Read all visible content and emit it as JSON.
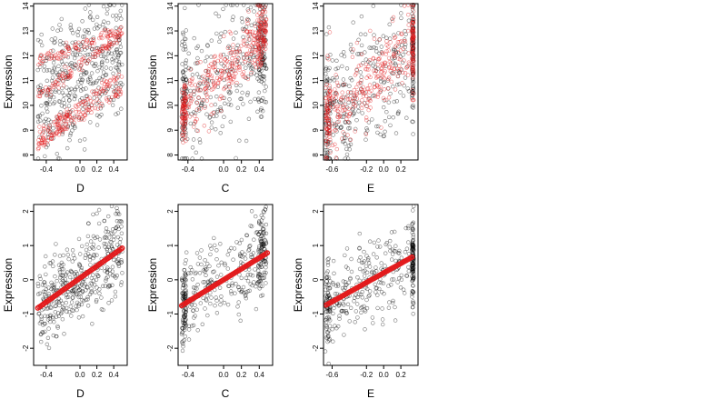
{
  "chart_data": [
    {
      "panel": "top-1",
      "type": "scatter",
      "xlabel": "D",
      "ylabel": "Expression",
      "xlim": [
        -0.55,
        0.56
      ],
      "ylim": [
        7.8,
        14.1
      ],
      "xticks": [
        -0.4,
        0.0,
        0.2,
        0.4
      ],
      "xticklabels": [
        "-0.4",
        "0.0",
        "0.2",
        "0.4"
      ],
      "yticks": [
        8,
        9,
        10,
        11,
        12,
        13,
        14
      ],
      "yticklabels": [
        "8",
        "9",
        "10",
        "11",
        "12",
        "13",
        "14"
      ],
      "grid": false,
      "series_colors": [
        "#000000",
        "#e31a1c"
      ],
      "observed_points": 400,
      "fitted_points": 400,
      "red_line_groups": [
        {
          "intercept": 11.6,
          "slope": 2.5
        },
        {
          "intercept": 10.0,
          "slope": 2.5
        },
        {
          "intercept": 9.5,
          "slope": 2.2
        },
        {
          "intercept": 12.4,
          "slope": 1.3
        }
      ]
    },
    {
      "panel": "top-2",
      "type": "scatter",
      "xlabel": "C",
      "ylabel": "Expression",
      "xlim": [
        -0.51,
        0.55
      ],
      "ylim": [
        7.8,
        14.1
      ],
      "xticks": [
        -0.4,
        0.0,
        0.2,
        0.4
      ],
      "xticklabels": [
        "-0.4",
        "0.0",
        "0.2",
        "0.4"
      ],
      "yticks": [
        8,
        9,
        10,
        11,
        12,
        13,
        14
      ],
      "yticklabels": [
        "8",
        "9",
        "10",
        "11",
        "12",
        "13",
        "14"
      ],
      "grid": false,
      "series_colors": [
        "#000000",
        "#e31a1c"
      ],
      "observed_points": 400,
      "fitted_points": 400,
      "red_trend": {
        "intercept": 11.3,
        "slope": 3.5,
        "spread": 0.6
      }
    },
    {
      "panel": "top-3",
      "type": "scatter",
      "xlabel": "E",
      "ylabel": "Expression",
      "xlim": [
        -0.7,
        0.4
      ],
      "ylim": [
        7.8,
        14.1
      ],
      "xticks": [
        -0.6,
        -0.2,
        0.0,
        0.2
      ],
      "xticklabels": [
        "-0.6",
        "-0.2",
        "0.0",
        "0.2"
      ],
      "yticks": [
        8,
        9,
        10,
        11,
        12,
        13,
        14
      ],
      "yticklabels": [
        "8",
        "9",
        "10",
        "11",
        "12",
        "13",
        "14"
      ],
      "grid": false,
      "series_colors": [
        "#000000",
        "#e31a1c"
      ],
      "observed_points": 400,
      "fitted_points": 400,
      "red_trend": {
        "intercept": 11.4,
        "slope": 3.0,
        "spread": 0.8
      }
    },
    {
      "panel": "bottom-1",
      "type": "scatter",
      "xlabel": "D",
      "ylabel": "Expression",
      "xlim": [
        -0.55,
        0.56
      ],
      "ylim": [
        -2.5,
        2.2
      ],
      "xticks": [
        -0.4,
        0.0,
        0.2,
        0.4
      ],
      "xticklabels": [
        "-0.4",
        "0.0",
        "0.2",
        "0.4"
      ],
      "yticks": [
        -2,
        -1,
        0,
        1,
        2
      ],
      "yticklabels": [
        "-2",
        "-1",
        "0",
        "1",
        "2"
      ],
      "grid": false,
      "series_colors": [
        "#000000",
        "#e31a1c"
      ],
      "observed_points": 420,
      "fitted_points": 60,
      "fit_line": {
        "intercept": 0.05,
        "slope": 1.75,
        "x_range": [
          -0.5,
          0.5
        ]
      }
    },
    {
      "panel": "bottom-2",
      "type": "scatter",
      "xlabel": "C",
      "ylabel": "Expression",
      "xlim": [
        -0.51,
        0.55
      ],
      "ylim": [
        -2.5,
        2.2
      ],
      "xticks": [
        -0.4,
        0.0,
        0.2,
        0.4
      ],
      "xticklabels": [
        "-0.4",
        "0.0",
        "0.2",
        "0.4"
      ],
      "yticks": [
        -2,
        -1,
        0,
        1,
        2
      ],
      "yticklabels": [
        "-2",
        "-1",
        "0",
        "1",
        "2"
      ],
      "grid": false,
      "series_colors": [
        "#000000",
        "#e31a1c"
      ],
      "observed_points": 420,
      "fitted_points": 60,
      "fit_line": {
        "intercept": 0.0,
        "slope": 1.6,
        "x_range": [
          -0.47,
          0.49
        ]
      }
    },
    {
      "panel": "bottom-3",
      "type": "scatter",
      "xlabel": "E",
      "ylabel": "Expression",
      "xlim": [
        -0.7,
        0.4
      ],
      "ylim": [
        -2.5,
        2.2
      ],
      "xticks": [
        -0.6,
        -0.2,
        0.0,
        0.2
      ],
      "xticklabels": [
        "-0.6",
        "-0.2",
        "0.0",
        "0.2"
      ],
      "yticks": [
        -2,
        -1,
        0,
        1,
        2
      ],
      "yticklabels": [
        "-2",
        "-1",
        "0",
        "1",
        "2"
      ],
      "grid": false,
      "series_colors": [
        "#000000",
        "#e31a1c"
      ],
      "observed_points": 420,
      "fitted_points": 60,
      "fit_line": {
        "intercept": 0.2,
        "slope": 1.4,
        "x_range": [
          -0.67,
          0.33
        ]
      }
    }
  ]
}
